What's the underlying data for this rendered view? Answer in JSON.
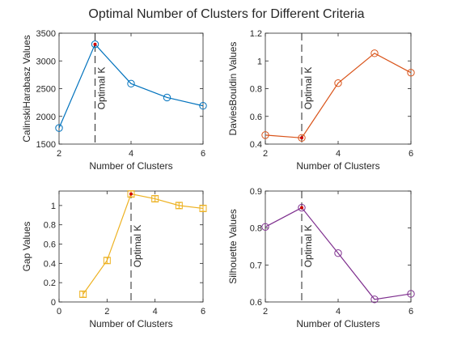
{
  "figure": {
    "title": "Optimal Number of Clusters for Different Criteria"
  },
  "chart_data": [
    {
      "type": "line",
      "xlabel": "Number of Clusters",
      "ylabel": "CalinskiHarabasz Values",
      "xlim": [
        2,
        6
      ],
      "ylim": [
        1500,
        3500
      ],
      "xticks": [
        2,
        4,
        6
      ],
      "yticks": [
        1500,
        2000,
        2500,
        3000,
        3500
      ],
      "x": [
        2,
        3,
        4,
        5,
        6
      ],
      "y": [
        1790,
        3300,
        2590,
        2340,
        2190
      ],
      "optimal_k": 3,
      "annotation": "Optimal K",
      "color": "#0072BD",
      "marker": "circle",
      "errorbars": false
    },
    {
      "type": "line",
      "xlabel": "Number of Clusters",
      "ylabel": "DaviesBouldin Values",
      "xlim": [
        2,
        6
      ],
      "ylim": [
        0.4,
        1.2
      ],
      "xticks": [
        2,
        4,
        6
      ],
      "yticks": [
        0.4,
        0.6,
        0.8,
        1,
        1.2
      ],
      "x": [
        2,
        3,
        4,
        5,
        6
      ],
      "y": [
        0.465,
        0.445,
        0.84,
        1.055,
        0.915
      ],
      "optimal_k": 3,
      "annotation": "Optimal K",
      "color": "#D95319",
      "marker": "circle",
      "errorbars": false
    },
    {
      "type": "line",
      "xlabel": "Number of Clusters",
      "ylabel": "Gap Values",
      "xlim": [
        0,
        6
      ],
      "ylim": [
        0,
        1.15
      ],
      "xticks": [
        0,
        2,
        4,
        6
      ],
      "yticks": [
        0,
        0.2,
        0.4,
        0.6,
        0.8,
        1
      ],
      "x": [
        1,
        2,
        3,
        4,
        5,
        6
      ],
      "y": [
        0.08,
        0.43,
        1.12,
        1.07,
        1.0,
        0.97
      ],
      "errors": [
        0.03,
        0.03,
        0.03,
        0.03,
        0.03,
        0.03
      ],
      "optimal_k": 3,
      "annotation": "Optimal K",
      "color": "#EDB120",
      "marker": "square",
      "errorbars": true
    },
    {
      "type": "line",
      "xlabel": "Number of Clusters",
      "ylabel": "Silhouette Values",
      "xlim": [
        2,
        6
      ],
      "ylim": [
        0.6,
        0.9
      ],
      "xticks": [
        2,
        4,
        6
      ],
      "yticks": [
        0.6,
        0.7,
        0.8,
        0.9
      ],
      "x": [
        2,
        3,
        4,
        5,
        6
      ],
      "y": [
        0.803,
        0.855,
        0.732,
        0.607,
        0.622
      ],
      "optimal_k": 3,
      "annotation": "Optimal K",
      "color": "#7E2F8E",
      "marker": "circle",
      "errorbars": false
    }
  ]
}
